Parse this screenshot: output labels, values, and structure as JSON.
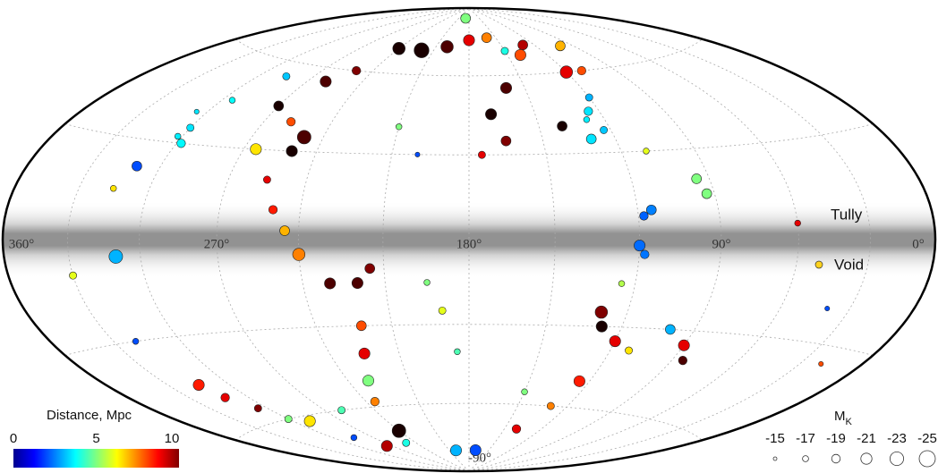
{
  "chart_data": {
    "type": "sky-scatter",
    "projection": "hammer-aitoff",
    "xlim": [
      360,
      0
    ],
    "xticks": [
      {
        "value": 360,
        "label": "360°"
      },
      {
        "value": 270,
        "label": "270°"
      },
      {
        "value": 180,
        "label": "180°"
      },
      {
        "value": 90,
        "label": "90°"
      },
      {
        "value": 0,
        "label": "0°"
      }
    ],
    "ylim": [
      -90,
      90
    ],
    "yticks": [
      {
        "value": -90,
        "label": "-90°"
      }
    ],
    "grid": true,
    "grid_longitudes": [
      30,
      60,
      90,
      120,
      150,
      180,
      210,
      240,
      270,
      300,
      330
    ],
    "grid_latitudes": [
      -60,
      -30,
      30,
      60
    ],
    "x": [
      300,
      302,
      298,
      305,
      295,
      285,
      310,
      315,
      310,
      330,
      320,
      315,
      312,
      305,
      300,
      290,
      285,
      275,
      250,
      240,
      260,
      235,
      230,
      225,
      222,
      230,
      220,
      215,
      240,
      245,
      250,
      255,
      250,
      248,
      258,
      265,
      270,
      260,
      250,
      240,
      220,
      200,
      180,
      160,
      150,
      140,
      130,
      120,
      160,
      170,
      165,
      175,
      140,
      125,
      128,
      123,
      130,
      120,
      110,
      95,
      93,
      115,
      118,
      120,
      118,
      125,
      128,
      130,
      120,
      112,
      100,
      90,
      85,
      125,
      130,
      150,
      140,
      170,
      200,
      190,
      195,
      185,
      40,
      20,
      60,
      110,
      100,
      210,
      200,
      190
    ],
    "y": [
      35,
      32,
      30,
      40,
      45,
      55,
      22,
      15,
      -5,
      -10,
      -30,
      -45,
      -50,
      -55,
      -60,
      -62,
      -70,
      -75,
      -75,
      -70,
      -60,
      -58,
      -50,
      -40,
      -30,
      -15,
      -15,
      -10,
      -5,
      3,
      10,
      20,
      30,
      35,
      40,
      30,
      45,
      55,
      60,
      70,
      70,
      72,
      75,
      76,
      70,
      68,
      72,
      60,
      55,
      45,
      35,
      30,
      40,
      45,
      42,
      38,
      35,
      50,
      30,
      20,
      15,
      10,
      8,
      -2,
      -5,
      -15,
      -30,
      -25,
      -35,
      -38,
      -30,
      -35,
      -40,
      -50,
      -60,
      -55,
      -70,
      -80,
      -80,
      -25,
      -15,
      -40,
      -20,
      -35,
      5,
      60,
      70,
      40,
      30,
      85
    ],
    "distance": [
      3.5,
      3.6,
      3.7,
      3.5,
      3.8,
      3.2,
      2.0,
      6.5,
      3.0,
      6,
      2,
      8.5,
      9,
      10,
      5,
      6.5,
      2,
      9.5,
      4,
      11,
      4.5,
      7.5,
      5,
      9,
      8,
      10.5,
      10.5,
      10,
      7.5,
      7,
      8.5,
      9,
      11,
      10.5,
      8,
      6.5,
      11,
      10.5,
      10,
      11,
      11,
      10.5,
      9,
      7.5,
      4,
      8,
      9.5,
      9,
      10.5,
      11,
      10,
      9,
      11,
      3.5,
      3.6,
      3.2,
      3.5,
      3.0,
      6,
      5.0,
      5,
      2.5,
      2.2,
      2.3,
      2.4,
      5.5,
      11,
      10,
      9,
      6.5,
      3,
      9,
      10.5,
      8.5,
      7.5,
      5,
      9,
      2,
      3,
      6,
      5,
      4.5,
      2,
      8,
      9,
      8,
      7,
      5,
      2,
      5
    ],
    "mk": [
      -18,
      -17,
      -19,
      -16,
      -17,
      -18,
      -20,
      -17,
      -23,
      -18,
      -17,
      -21,
      -19,
      -18,
      -18,
      -21,
      -17,
      -21,
      -18,
      -23,
      -18,
      -19,
      -21,
      -21,
      -20,
      -21,
      -21,
      -20,
      -22,
      -20,
      -19,
      -18,
      -21,
      -23,
      -19,
      -21,
      -20,
      -21,
      -19,
      -22,
      -24,
      -22,
      -21,
      -20,
      -18,
      -21,
      -20,
      -22,
      -21,
      -21,
      -20,
      -18,
      -20,
      -19,
      -17,
      -18,
      -20,
      -18,
      -17,
      -20,
      -20,
      -20,
      -19,
      -21,
      -19,
      -17,
      -21,
      -22,
      -21,
      -18,
      -20,
      -21,
      -19,
      -21,
      -18,
      -17,
      -19,
      -21,
      -21,
      -18,
      -17,
      -17,
      -16,
      -16,
      -17,
      -19,
      -20,
      -17,
      -16,
      -20
    ],
    "annotations": [
      "Tully",
      "Void"
    ],
    "colorbar": {
      "label": "Distance, Mpc",
      "lim": [
        0,
        10
      ],
      "ticks": [
        0,
        5,
        10
      ]
    },
    "size_legend": {
      "title": "M",
      "title_sub": "K",
      "values": [
        -15,
        -17,
        -19,
        -21,
        -23,
        -25
      ]
    }
  }
}
